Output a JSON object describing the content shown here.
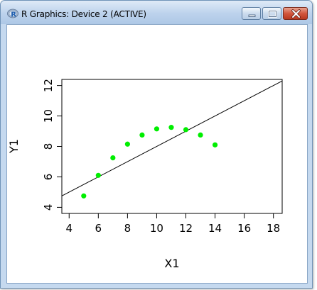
{
  "window": {
    "title": "R Graphics: Device 2 (ACTIVE)",
    "icon": "r-logo-icon",
    "controls": [
      "minimize-icon",
      "maximize-icon",
      "close-icon"
    ]
  },
  "chart_data": {
    "type": "scatter",
    "title": "",
    "xlabel": "X1",
    "ylabel": "Y1",
    "xlim": [
      3.5,
      18.6
    ],
    "ylim": [
      3.6,
      12.4
    ],
    "x_ticks": [
      4,
      6,
      8,
      10,
      12,
      14,
      16,
      18
    ],
    "y_ticks": [
      4,
      6,
      8,
      10,
      12
    ],
    "grid": false,
    "legend": "none",
    "point_color": "#00ee00",
    "line_color": "#000000",
    "points": [
      {
        "x": 5,
        "y": 4.75
      },
      {
        "x": 6,
        "y": 6.1
      },
      {
        "x": 7,
        "y": 7.25
      },
      {
        "x": 8,
        "y": 8.15
      },
      {
        "x": 9,
        "y": 8.75
      },
      {
        "x": 10,
        "y": 9.15
      },
      {
        "x": 11,
        "y": 9.25
      },
      {
        "x": 12,
        "y": 9.1
      },
      {
        "x": 13,
        "y": 8.75
      },
      {
        "x": 14,
        "y": 8.1
      }
    ],
    "line": {
      "intercept": 3.0,
      "slope": 0.5
    }
  }
}
